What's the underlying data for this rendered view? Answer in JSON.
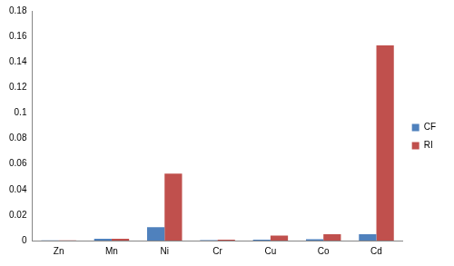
{
  "chart_data": {
    "type": "bar",
    "categories": [
      "Zn",
      "Mn",
      "Ni",
      "Cr",
      "Cu",
      "Co",
      "Cd"
    ],
    "series": [
      {
        "name": "CF",
        "color": "#4f81bd",
        "values": [
          0.0001,
          0.0015,
          0.0105,
          0.0003,
          0.0008,
          0.001,
          0.005
        ]
      },
      {
        "name": "RI",
        "color": "#c0504d",
        "values": [
          0.0001,
          0.0015,
          0.0525,
          0.0008,
          0.004,
          0.005,
          0.153
        ]
      }
    ],
    "ylim": [
      0,
      0.18
    ],
    "yticks": [
      0,
      0.02,
      0.04,
      0.06,
      0.08,
      0.1,
      0.12,
      0.14,
      0.16,
      0.18
    ],
    "grid": false,
    "legend": "right"
  }
}
